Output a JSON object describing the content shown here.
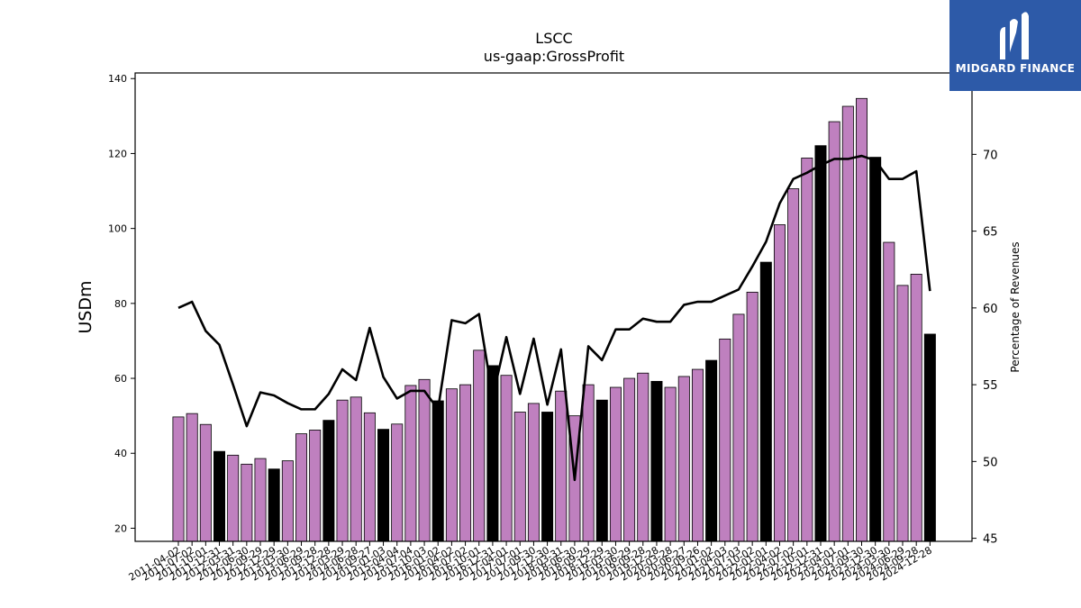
{
  "logo": {
    "text": "MIDGARD FINANCE",
    "icon": "midgard-mark-icon",
    "color": "#2d5aa8"
  },
  "chart_data": {
    "type": "bar",
    "title": "LSCC",
    "subtitle": "us-gaap:GrossProfit",
    "ylabel": "USDm",
    "y2label": "Percentage of Revenues",
    "ylim": [
      16.5,
      141.5
    ],
    "y2lim": [
      44.8,
      75.3
    ],
    "yticks": [
      20,
      40,
      60,
      80,
      100,
      120,
      140
    ],
    "y2ticks": [
      45,
      50,
      55,
      60,
      65,
      70
    ],
    "colors": {
      "bar": "#bf80bf",
      "highlight": "#000000",
      "line": "#000000"
    },
    "categories": [
      "2011-04-02",
      "2011-07-02",
      "2011-10-01",
      "2011-12-31",
      "2012-03-31",
      "2012-06-30",
      "2012-09-29",
      "2012-12-29",
      "2013-03-30",
      "2013-06-29",
      "2013-09-28",
      "2013-12-28",
      "2014-03-29",
      "2014-06-28",
      "2014-09-27",
      "2015-01-03",
      "2015-04-04",
      "2015-07-04",
      "2015-10-03",
      "2016-01-02",
      "2016-04-02",
      "2016-07-02",
      "2016-10-01",
      "2016-12-31",
      "2017-04-01",
      "2017-07-01",
      "2017-09-30",
      "2017-12-30",
      "2018-03-31",
      "2018-06-30",
      "2018-09-29",
      "2018-12-29",
      "2019-03-30",
      "2019-06-29",
      "2019-09-28",
      "2019-12-28",
      "2020-03-28",
      "2020-06-27",
      "2020-09-26",
      "2021-01-02",
      "2021-04-03",
      "2021-07-03",
      "2021-10-02",
      "2022-01-01",
      "2022-04-02",
      "2022-07-02",
      "2022-10-01",
      "2022-12-31",
      "2023-04-01",
      "2023-07-01",
      "2023-09-30",
      "2023-12-30",
      "2024-03-30",
      "2024-06-29",
      "2024-09-28",
      "2024-12-28"
    ],
    "values": [
      49.7,
      50.6,
      47.7,
      40.5,
      39.5,
      37.1,
      38.6,
      35.8,
      38.0,
      45.2,
      46.2,
      48.8,
      54.2,
      55.0,
      50.8,
      46.4,
      47.8,
      58.1,
      59.7,
      54.0,
      57.2,
      58.3,
      67.5,
      63.4,
      60.8,
      51.0,
      53.3,
      51.0,
      56.6,
      50.0,
      58.3,
      54.2,
      57.6,
      60.0,
      61.4,
      59.2,
      57.6,
      60.5,
      62.4,
      64.8,
      70.5,
      77.1,
      83.0,
      91.0,
      101.0,
      110.6,
      118.8,
      122.1,
      128.5,
      132.6,
      134.7,
      119.0,
      96.3,
      84.8,
      87.8,
      71.8
    ],
    "highlighted": [
      false,
      false,
      false,
      true,
      false,
      false,
      false,
      true,
      false,
      false,
      false,
      true,
      false,
      false,
      false,
      true,
      false,
      false,
      false,
      true,
      false,
      false,
      false,
      true,
      false,
      false,
      false,
      true,
      false,
      false,
      false,
      true,
      false,
      false,
      false,
      true,
      false,
      false,
      false,
      true,
      false,
      false,
      false,
      true,
      false,
      false,
      false,
      true,
      false,
      false,
      false,
      true,
      false,
      false,
      false,
      true
    ],
    "line_series": {
      "axis": "secondary",
      "values": [
        60.0,
        60.4,
        58.5,
        57.6,
        55.0,
        52.3,
        54.5,
        54.3,
        53.8,
        53.4,
        53.4,
        54.4,
        56.0,
        55.3,
        58.7,
        55.5,
        54.1,
        54.6,
        54.6,
        53.4,
        59.2,
        59.0,
        59.6,
        54.2,
        58.1,
        54.4,
        58.0,
        53.7,
        57.3,
        48.8,
        57.5,
        56.6,
        58.6,
        58.6,
        59.3,
        59.1,
        59.1,
        60.2,
        60.4,
        60.4,
        60.8,
        61.2,
        62.7,
        64.3,
        66.8,
        68.4,
        68.8,
        69.3,
        69.7,
        69.7,
        69.9,
        69.6,
        68.4,
        68.4,
        68.9,
        61.1
      ]
    },
    "grid": false,
    "legend": "none"
  }
}
